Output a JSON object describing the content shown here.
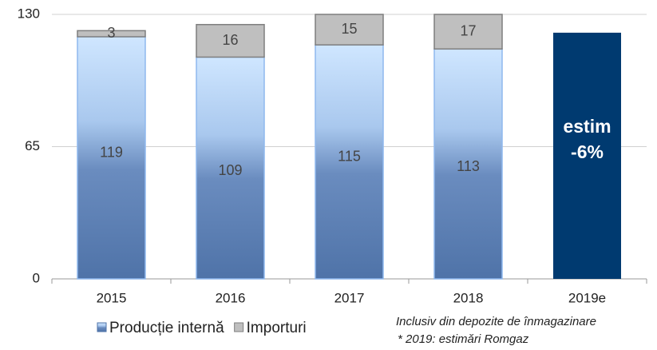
{
  "chart_data": {
    "type": "stacked_bar",
    "categories": [
      "2015",
      "2016",
      "2017",
      "2018",
      "2019e"
    ],
    "series": [
      {
        "name": "Producție internă",
        "color": "#4f73a8",
        "values": [
          119,
          109,
          115,
          113,
          121
        ],
        "point_colors": [
          null,
          null,
          null,
          null,
          "#003a70"
        ]
      },
      {
        "name": "Importuri",
        "color": "#bfbfbf",
        "values": [
          3,
          16,
          15,
          17,
          null
        ]
      }
    ],
    "ylim": [
      0,
      130
    ],
    "yticks": [
      0,
      65,
      130
    ],
    "grid": true,
    "annotations": [
      {
        "category": 4,
        "lines": [
          "estim",
          "-6%"
        ]
      }
    ],
    "notes": [
      "Inclusiv din depozite de înmagazinare",
      "* 2019: estimări Romgaz"
    ]
  }
}
